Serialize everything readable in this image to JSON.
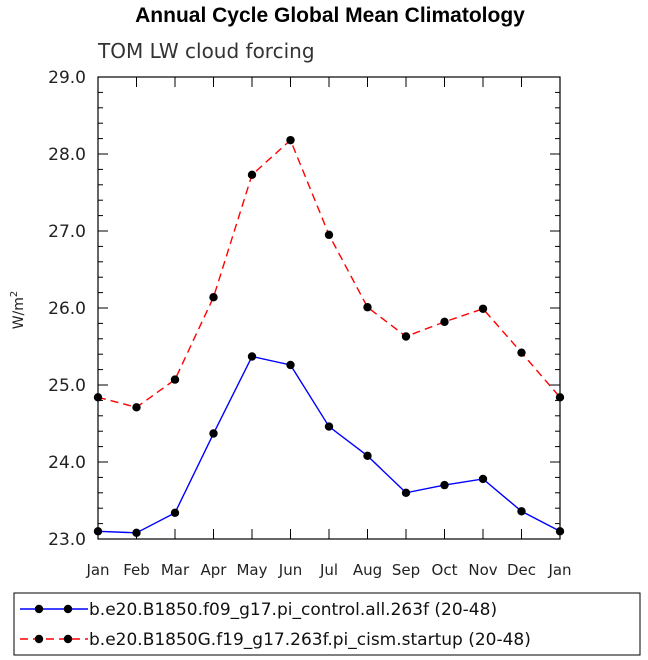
{
  "chart_data": {
    "type": "line",
    "title": "Annual Cycle Global Mean Climatology",
    "subtitle": "TOM LW cloud forcing",
    "xlabel": "",
    "ylabel": "W/m",
    "ylabel_superscript": "2",
    "ylim": [
      23.0,
      29.0
    ],
    "y_ticks": [
      "23.0",
      "24.0",
      "25.0",
      "26.0",
      "27.0",
      "28.0",
      "29.0"
    ],
    "categories": [
      "Jan",
      "Feb",
      "Mar",
      "Apr",
      "May",
      "Jun",
      "Jul",
      "Aug",
      "Sep",
      "Oct",
      "Nov",
      "Dec",
      "Jan"
    ],
    "series": [
      {
        "name": "b.e20.B1850.f09_g17.pi_control.all.263f (20-48)",
        "color": "#0000ff",
        "dash": "solid",
        "values": [
          23.1,
          23.08,
          23.34,
          24.37,
          25.37,
          25.26,
          24.46,
          24.08,
          23.6,
          23.7,
          23.78,
          23.36,
          23.1
        ]
      },
      {
        "name": "b.e20.B1850G.f19_g17.263f.pi_cism.startup (20-48)",
        "color": "#ff0000",
        "dash": "dashed",
        "values": [
          24.84,
          24.71,
          25.07,
          26.14,
          27.73,
          28.18,
          26.95,
          26.01,
          25.63,
          25.82,
          25.99,
          25.42,
          24.84
        ]
      }
    ]
  }
}
